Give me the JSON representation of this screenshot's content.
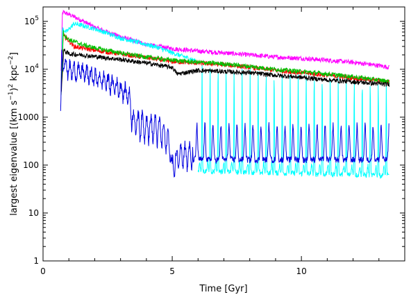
{
  "chart_data": {
    "type": "line",
    "title": "",
    "xlabel": "Time [Gyr]",
    "ylabel_parts": {
      "base": "largest eigenvalue [(km s",
      "exp1": "−1",
      "mid1": ")",
      "exp2": "2",
      "mid2": " kpc",
      "exp3": "−2",
      "end": "]"
    },
    "xlim": [
      0,
      14.0
    ],
    "ylim": [
      1,
      200000
    ],
    "yscale": "log",
    "xticks": [
      {
        "value": 0,
        "label": "0"
      },
      {
        "value": 5,
        "label": "5"
      },
      {
        "value": 10,
        "label": "10"
      }
    ],
    "yticks": [
      {
        "value": 1,
        "label": "1"
      },
      {
        "value": 10,
        "label": "10"
      },
      {
        "value": 100,
        "label": "100"
      },
      {
        "value": 1000,
        "label": "1000"
      },
      {
        "value": 10000,
        "label": "10",
        "exp": "4"
      },
      {
        "value": 100000,
        "label": "10",
        "exp": "5"
      }
    ],
    "grid": false,
    "series": [
      {
        "color": "#ff00ff",
        "style": "noisy",
        "x": [
          0.7,
          0.75,
          0.8,
          1.0,
          1.5,
          2.0,
          3.0,
          4.0,
          5.0,
          6.0,
          7.0,
          8.0,
          9.0,
          10.0,
          11.0,
          12.0,
          13.0,
          13.4
        ],
        "y": [
          9000,
          150000,
          155000,
          140000,
          105000,
          75000,
          48000,
          33000,
          27000,
          24000,
          22000,
          20000,
          18000,
          17000,
          15500,
          14000,
          12000,
          11000
        ]
      },
      {
        "color": "#00ffff",
        "style": "noisy",
        "x": [
          0.7,
          0.75,
          0.9,
          1.2,
          1.6,
          2.0,
          3.0,
          4.0,
          4.5,
          5.0,
          5.5,
          5.9
        ],
        "y": [
          3000,
          70000,
          60000,
          90000,
          80000,
          70000,
          45000,
          33000,
          28000,
          22000,
          18000,
          15000
        ]
      },
      {
        "color": "#00ffff",
        "style": "spiky",
        "x": [
          6.0,
          13.4
        ],
        "y": [
          80,
          80
        ],
        "spike_period": 0.31,
        "spike_peaks": [
          14000,
          6000
        ],
        "trough": [
          75,
          60
        ]
      },
      {
        "color": "#ff0000",
        "style": "noisy",
        "x": [
          0.7,
          0.78,
          0.9,
          1.2,
          1.5,
          2.0,
          3.0,
          4.0,
          4.8,
          5.0,
          6.0,
          7.0,
          8.0,
          9.0,
          10.0,
          11.0,
          12.0,
          13.0,
          13.4
        ],
        "y": [
          3000,
          50000,
          45000,
          30000,
          28000,
          25000,
          21000,
          17500,
          15000,
          14500,
          13500,
          12500,
          11000,
          9500,
          8500,
          7500,
          6600,
          5800,
          5500
        ]
      },
      {
        "color": "#00c000",
        "style": "noisy",
        "x": [
          0.7,
          0.78,
          0.85,
          1.0,
          1.5,
          2.0,
          3.0,
          4.0,
          5.0,
          6.0,
          7.0,
          8.0,
          9.0,
          10.0,
          11.0,
          12.0,
          13.0,
          13.4
        ],
        "y": [
          3000,
          60000,
          50000,
          42000,
          33000,
          28000,
          22000,
          18000,
          15500,
          14000,
          13000,
          11500,
          10000,
          9000,
          8000,
          7000,
          6000,
          5600
        ]
      },
      {
        "color": "#000000",
        "style": "noisy",
        "x": [
          0.7,
          0.8,
          1.0,
          1.5,
          2.0,
          3.0,
          4.0,
          5.0,
          5.2,
          6.0,
          7.0,
          8.0,
          9.0,
          10.0,
          11.0,
          12.0,
          13.0,
          13.4
        ],
        "y": [
          3000,
          25000,
          21000,
          20000,
          18500,
          16000,
          13500,
          11000,
          8000,
          9500,
          9000,
          8500,
          7500,
          6800,
          6000,
          5500,
          5000,
          4800
        ]
      },
      {
        "color": "#0000e0",
        "style": "mixed",
        "x": [
          0.68,
          0.72,
          0.8,
          1.0,
          1.5,
          2.0,
          2.5,
          3.0,
          3.3,
          3.5,
          4.0,
          4.5,
          4.9,
          5.0,
          5.3,
          5.6,
          6.0,
          13.4
        ],
        "y": [
          1000,
          20000,
          15000,
          10000,
          9000,
          7000,
          5500,
          4000,
          3000,
          900,
          700,
          600,
          300,
          90,
          200,
          170,
          180,
          190
        ],
        "spike_from": 5.8,
        "spike_period": 0.31,
        "spike_peak": 700,
        "trough": 130
      }
    ]
  }
}
